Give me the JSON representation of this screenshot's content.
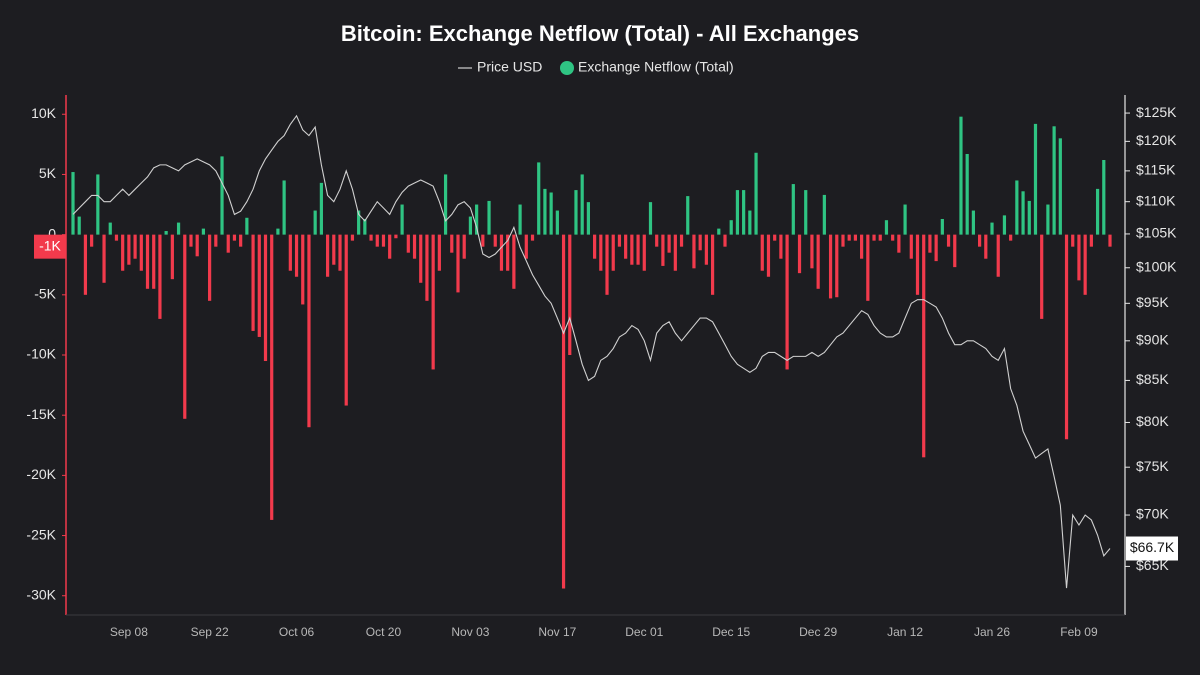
{
  "chart_data": {
    "type": "bar",
    "title": "Bitcoin: Exchange Netflow (Total) - All Exchanges",
    "categories": [
      null,
      null,
      null,
      null,
      null,
      null,
      null,
      null,
      null,
      "Sep 08",
      null,
      null,
      null,
      null,
      null,
      null,
      null,
      null,
      null,
      null,
      null,
      null,
      "Sep 22",
      null,
      null,
      null,
      null,
      null,
      null,
      null,
      null,
      null,
      null,
      null,
      null,
      null,
      "Oct 06",
      null,
      null,
      null,
      null,
      null,
      null,
      null,
      null,
      null,
      null,
      null,
      null,
      null,
      "Oct 20",
      null,
      null,
      null,
      null,
      null,
      null,
      null,
      null,
      null,
      null,
      null,
      null,
      null,
      "Nov 03",
      null,
      null,
      null,
      null,
      null,
      null,
      null,
      null,
      null,
      null,
      null,
      null,
      null,
      "Nov 17",
      null,
      null,
      null,
      null,
      null,
      null,
      null,
      null,
      null,
      null,
      null,
      null,
      null,
      "Dec 01",
      null,
      null,
      null,
      null,
      null,
      null,
      null,
      null,
      null,
      null,
      null,
      null,
      null,
      "Dec 15",
      null,
      null,
      null,
      null,
      null,
      null,
      null,
      null,
      null,
      null,
      null,
      null,
      null,
      "Dec 29",
      null,
      null,
      null,
      null,
      null,
      null,
      null,
      null,
      null,
      null,
      null,
      null,
      null,
      "Jan 12",
      null,
      null,
      null,
      null,
      null,
      null,
      null,
      null,
      null,
      null,
      null,
      null,
      null,
      "Jan 26",
      null,
      null,
      null,
      null,
      null,
      null,
      null,
      null,
      null,
      null,
      null,
      null,
      null,
      "Feb 09",
      null,
      null,
      null,
      null,
      null
    ],
    "series": [
      {
        "name": "Exchange Netflow (Total)",
        "type": "bar",
        "color": "#2fc483",
        "negative_color": "#f23a4c",
        "values": [
          5200,
          1500,
          -5000,
          -1000,
          5000,
          -4000,
          1000,
          -500,
          -3000,
          -2500,
          -2000,
          -3000,
          -4500,
          -4500,
          -7000,
          300,
          -3700,
          1000,
          -15300,
          -1000,
          -1800,
          500,
          -5500,
          -1000,
          6500,
          -1500,
          -500,
          -1000,
          1400,
          -8000,
          -8500,
          -10500,
          -23700,
          500,
          4500,
          -3000,
          -3500,
          -5800,
          -16000,
          2000,
          4300,
          -3500,
          -2500,
          -3000,
          -14200,
          -500,
          2000,
          1300,
          -500,
          -1000,
          -1000,
          -2000,
          -300,
          2500,
          -1500,
          -2000,
          -4000,
          -5500,
          -11200,
          -3000,
          5000,
          -1500,
          -4800,
          -2000,
          1500,
          2500,
          -1000,
          2800,
          -1000,
          -3000,
          -3000,
          -4500,
          2500,
          -2000,
          -500,
          6000,
          3800,
          3500,
          2000,
          -29400,
          -10000,
          3700,
          5000,
          2700,
          -2000,
          -3000,
          -5000,
          -3000,
          -1000,
          -2000,
          -2500,
          -2500,
          -3000,
          2700,
          -1000,
          -2600,
          -1500,
          -3000,
          -1000,
          3200,
          -2800,
          -1300,
          -2500,
          -5000,
          500,
          -1000,
          1200,
          3700,
          3700,
          2000,
          6800,
          -3000,
          -3500,
          -500,
          -2000,
          -11200,
          4200,
          -3200,
          3700,
          -2800,
          -4500,
          3300,
          -5300,
          -5200,
          -1000,
          -500,
          -500,
          -2000,
          -5500,
          -500,
          -500,
          1200,
          -500,
          -1500,
          2500,
          -2000,
          -5000,
          -18500,
          -1500,
          -2200,
          1300,
          -1000,
          -2700,
          9800,
          6700,
          2000,
          -1000,
          -2000,
          1000,
          -3500,
          1600,
          -500,
          4500,
          3600,
          2800,
          9200,
          -7000,
          2500,
          9000,
          8000,
          -17000,
          -1000,
          -3800,
          -5000,
          -1000,
          3800,
          6200,
          -1000
        ]
      },
      {
        "name": "Price USD",
        "type": "line",
        "color": "#d0d0d0",
        "axis": "y2",
        "values": [
          108000,
          109000,
          110000,
          111000,
          111000,
          110000,
          110000,
          111000,
          112000,
          111000,
          112000,
          113000,
          114000,
          115500,
          116000,
          116000,
          115500,
          115000,
          116000,
          116500,
          117000,
          116500,
          116000,
          115000,
          113000,
          111000,
          108000,
          108500,
          110000,
          112000,
          115000,
          117000,
          118500,
          120000,
          121000,
          123000,
          124500,
          122000,
          121000,
          122500,
          116000,
          111000,
          110000,
          112000,
          115000,
          112000,
          108000,
          107000,
          108500,
          110000,
          109000,
          108000,
          110000,
          111500,
          112500,
          113000,
          113500,
          113000,
          112500,
          110000,
          107000,
          108000,
          109500,
          110000,
          109000,
          106000,
          102000,
          101500,
          102000,
          103000,
          104000,
          106000,
          103000,
          101000,
          99000,
          97500,
          96000,
          95000,
          93000,
          91000,
          93000,
          90000,
          87000,
          85000,
          85500,
          87500,
          88000,
          89000,
          90500,
          91000,
          92000,
          91500,
          90000,
          87500,
          91000,
          92000,
          92500,
          91000,
          90000,
          91000,
          92000,
          93000,
          93000,
          92500,
          91000,
          89500,
          88000,
          87000,
          86500,
          86000,
          86500,
          88000,
          88500,
          88500,
          88000,
          87500,
          88000,
          88000,
          88000,
          88500,
          88000,
          88500,
          89500,
          90500,
          91000,
          92000,
          93000,
          94000,
          93500,
          92000,
          91000,
          90500,
          90500,
          91000,
          93000,
          95000,
          95500,
          95500,
          95000,
          94500,
          93000,
          91000,
          89500,
          89500,
          90000,
          90000,
          89500,
          89000,
          88000,
          87500,
          89000,
          84000,
          82000,
          79000,
          77500,
          76000,
          76500,
          77000,
          74000,
          71000,
          63000,
          70000,
          69000,
          70000,
          69500,
          68000,
          66000,
          66700
        ]
      }
    ],
    "ylim": [
      -31600,
      11600
    ],
    "yticks": [
      {
        "value": 10000,
        "label": "10K"
      },
      {
        "value": 5000,
        "label": "5K"
      },
      0,
      {
        "value": -5000,
        "label": "-5K"
      },
      {
        "value": -10000,
        "label": "-10K"
      },
      {
        "value": -15000,
        "label": "-15K"
      },
      {
        "value": -20000,
        "label": "-20K"
      },
      {
        "value": -25000,
        "label": "-25K"
      },
      {
        "value": -30000,
        "label": "-30K"
      }
    ],
    "y2lim": [
      60600,
      128300
    ],
    "y2log": true,
    "y2ticks": [
      {
        "value": 125000,
        "label": "$125K"
      },
      {
        "value": 120000,
        "label": "$120K"
      },
      {
        "value": 115000,
        "label": "$115K"
      },
      {
        "value": 110000,
        "label": "$110K"
      },
      {
        "value": 105000,
        "label": "$105K"
      },
      {
        "value": 100000,
        "label": "$100K"
      },
      {
        "value": 95000,
        "label": "$95K"
      },
      {
        "value": 90000,
        "label": "$90K"
      },
      {
        "value": 85000,
        "label": "$85K"
      },
      {
        "value": 80000,
        "label": "$80K"
      },
      {
        "value": 75000,
        "label": "$75K"
      },
      {
        "value": 70000,
        "label": "$70K"
      },
      {
        "value": 65000,
        "label": "$65K"
      }
    ],
    "current_price_label": "$66.7K",
    "cursor_label": {
      "value": -1000,
      "label": "-1K"
    },
    "grid": false
  }
}
